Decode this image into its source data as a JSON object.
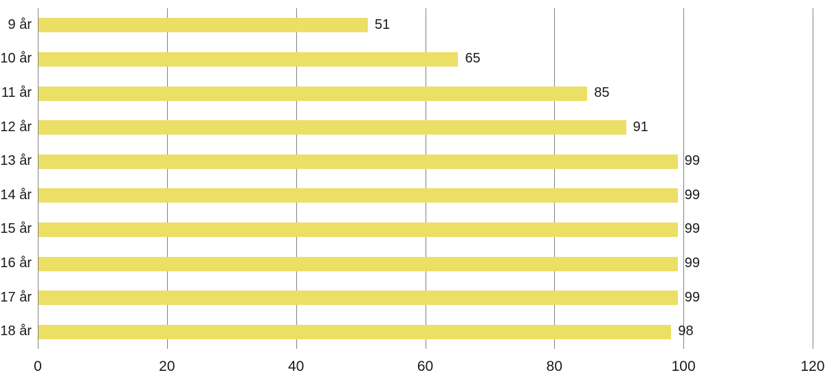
{
  "chart_data": {
    "type": "bar",
    "orientation": "horizontal",
    "title": "",
    "xlabel": "",
    "ylabel": "",
    "categories": [
      "9 år",
      "10 år",
      "11 år",
      "12 år",
      "13 år",
      "14 år",
      "15 år",
      "16 år",
      "17 år",
      "18 år"
    ],
    "values": [
      51,
      65,
      85,
      91,
      99,
      99,
      99,
      99,
      99,
      98
    ],
    "value_labels": [
      "51",
      "65",
      "85",
      "91",
      "99",
      "99",
      "99",
      "99",
      "99",
      "98"
    ],
    "xlim": [
      0,
      120
    ],
    "xticks": [
      0,
      20,
      40,
      60,
      80,
      100,
      120
    ],
    "xtick_labels": [
      "0",
      "20",
      "40",
      "60",
      "80",
      "100",
      "120"
    ],
    "grid": "vertical-on",
    "legend": "none",
    "bar_color": "#ecdf66",
    "grid_color": "#808080",
    "text_color": "#1a1a1a",
    "background_color": "#ffffff"
  }
}
